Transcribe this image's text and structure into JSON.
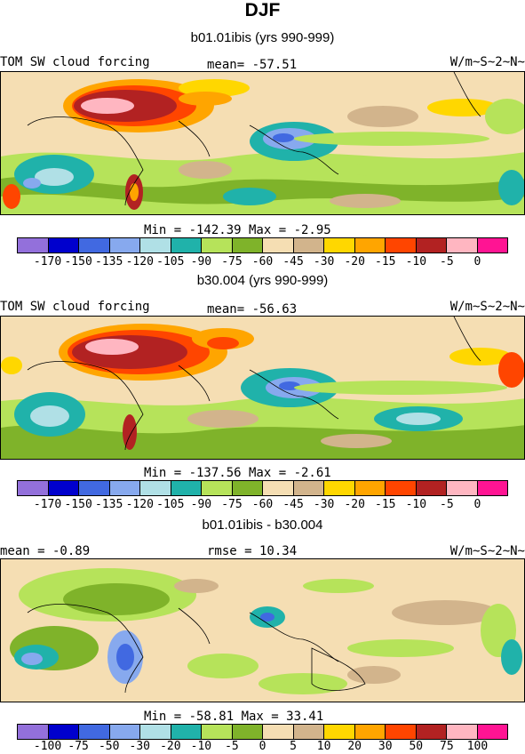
{
  "figure": {
    "season": "DJF"
  },
  "panels": [
    {
      "subtitle": "b01.01ibis (yrs 990-999)",
      "left": "TOM SW cloud forcing",
      "center": "mean= -57.51",
      "right": "W/m~S~2~N~",
      "minmax": "Min = -142.39 Max =  -2.95",
      "scale": "a"
    },
    {
      "subtitle": "b30.004 (yrs 990-999)",
      "left": "TOM SW cloud forcing",
      "center": "mean= -56.63",
      "right": "W/m~S~2~N~",
      "minmax": "Min = -137.56 Max =  -2.61",
      "scale": "a"
    },
    {
      "subtitle": "b01.01ibis - b30.004",
      "left": "mean =  -0.89",
      "center": "rmse =  10.34",
      "right": "W/m~S~2~N~",
      "minmax": "Min = -58.81 Max =  33.41",
      "scale": "b"
    }
  ],
  "colorbars": {
    "colors": [
      "#9370db",
      "#0000cd",
      "#4169e1",
      "#87a9ee",
      "#b0e0e6",
      "#20b2aa",
      "#b6e35a",
      "#7fb32a",
      "#f5deb3",
      "#d2b48c",
      "#ffd700",
      "#ffa500",
      "#ff4500",
      "#b22222",
      "#ffb6c1",
      "#ff1493"
    ],
    "a": {
      "ticks": [
        "-170",
        "-150",
        "-135",
        "-120",
        "-105",
        "-90",
        "-75",
        "-60",
        "-45",
        "-30",
        "-20",
        "-15",
        "-10",
        "-5",
        "0"
      ]
    },
    "b": {
      "ticks": [
        "-100",
        "-75",
        "-50",
        "-30",
        "-20",
        "-10",
        "-5",
        "0",
        "5",
        "10",
        "20",
        "30",
        "50",
        "75",
        "100"
      ]
    }
  }
}
